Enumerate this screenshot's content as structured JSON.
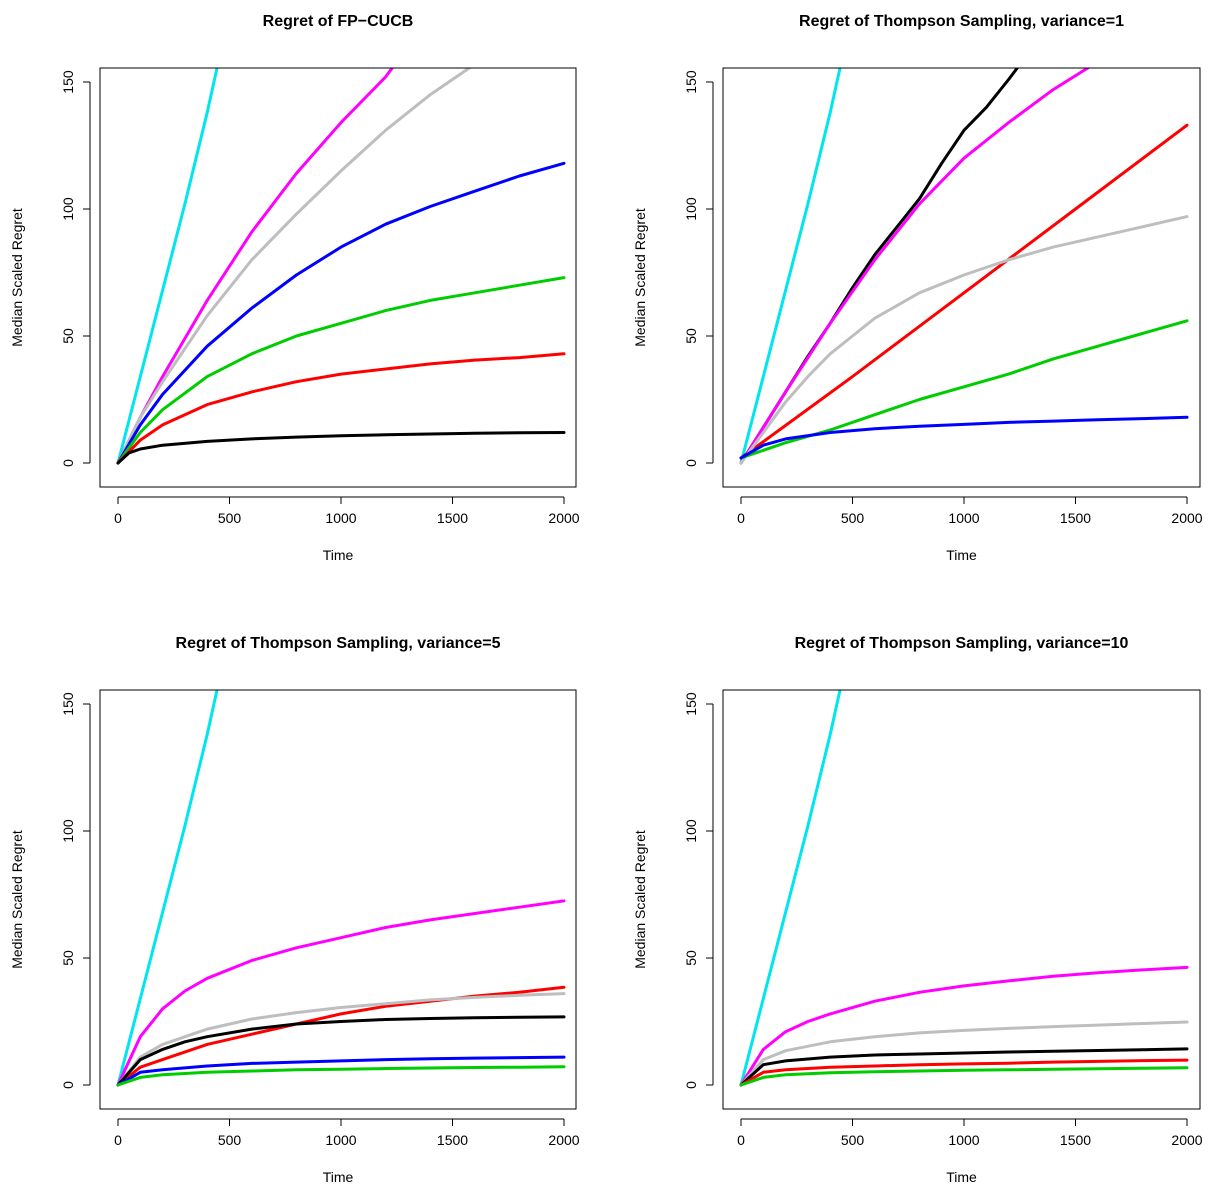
{
  "chart_data": [
    {
      "type": "line",
      "title": "Regret of FP−CUCB",
      "xlabel": "Time",
      "ylabel": "Median Scaled Regret",
      "xlim": [
        0,
        2000
      ],
      "ylim": [
        0,
        150
      ],
      "xticks": [
        "0",
        "500",
        "1000",
        "1500",
        "2000"
      ],
      "yticks": [
        "0",
        "50",
        "100",
        "150"
      ],
      "grid": false,
      "legend": "none",
      "series": [
        {
          "color": "#00e5ee",
          "x": [
            0,
            100,
            200,
            300,
            400,
            450
          ],
          "y": [
            0,
            34,
            68,
            102,
            138,
            158
          ]
        },
        {
          "color": "#ff00ff",
          "x": [
            0,
            100,
            200,
            400,
            600,
            800,
            1000,
            1200,
            1250
          ],
          "y": [
            0,
            18,
            34,
            64,
            91,
            114,
            134,
            152,
            158
          ]
        },
        {
          "color": "#bebebe",
          "x": [
            0,
            100,
            200,
            400,
            600,
            800,
            1000,
            1200,
            1400,
            1600
          ],
          "y": [
            0,
            18,
            32,
            58,
            80,
            98,
            115,
            131,
            145,
            157
          ]
        },
        {
          "color": "#0000ff",
          "x": [
            0,
            100,
            200,
            400,
            600,
            800,
            1000,
            1200,
            1400,
            1600,
            1800,
            2000
          ],
          "y": [
            0,
            15,
            27,
            46,
            61,
            74,
            85,
            94,
            101,
            107,
            113,
            118
          ]
        },
        {
          "color": "#00cd00",
          "x": [
            0,
            100,
            200,
            400,
            600,
            800,
            1000,
            1200,
            1400,
            1600,
            1800,
            2000
          ],
          "y": [
            0,
            12,
            21,
            34,
            43,
            50,
            55,
            60,
            64,
            67,
            70,
            73
          ]
        },
        {
          "color": "#ff0000",
          "x": [
            0,
            100,
            200,
            400,
            600,
            800,
            1000,
            1200,
            1400,
            1600,
            1800,
            2000
          ],
          "y": [
            0,
            9,
            15,
            23,
            28,
            32,
            35,
            37,
            39,
            40.5,
            41.5,
            43
          ]
        },
        {
          "color": "#000000",
          "x": [
            0,
            50,
            100,
            200,
            400,
            600,
            800,
            1000,
            1200,
            1400,
            1600,
            1800,
            2000
          ],
          "y": [
            0,
            4,
            5.5,
            7,
            8.5,
            9.5,
            10.2,
            10.7,
            11.1,
            11.4,
            11.7,
            11.9,
            12
          ]
        }
      ]
    },
    {
      "type": "line",
      "title": "Regret of Thompson Sampling, variance=1",
      "xlabel": "Time",
      "ylabel": "Median Scaled Regret",
      "xlim": [
        0,
        2000
      ],
      "ylim": [
        0,
        150
      ],
      "xticks": [
        "0",
        "500",
        "1000",
        "1500",
        "2000"
      ],
      "yticks": [
        "0",
        "50",
        "100",
        "150"
      ],
      "grid": false,
      "legend": "none",
      "series": [
        {
          "color": "#00e5ee",
          "x": [
            0,
            100,
            200,
            300,
            400,
            450
          ],
          "y": [
            0,
            34,
            68,
            102,
            138,
            158
          ]
        },
        {
          "color": "#000000",
          "x": [
            0,
            100,
            200,
            300,
            400,
            500,
            600,
            700,
            800,
            900,
            1000,
            1100,
            1200,
            1260
          ],
          "y": [
            0,
            14,
            28,
            42,
            55,
            69,
            82,
            93,
            104,
            118,
            131,
            140,
            151,
            158
          ]
        },
        {
          "color": "#ff00ff",
          "x": [
            0,
            100,
            200,
            400,
            600,
            800,
            1000,
            1200,
            1400,
            1600
          ],
          "y": [
            0,
            14,
            28,
            55,
            80,
            102,
            120,
            134,
            147,
            158
          ]
        },
        {
          "color": "#ff0000",
          "x": [
            0,
            500,
            1000,
            1500,
            2000
          ],
          "y": [
            2,
            34,
            67,
            100,
            133
          ]
        },
        {
          "color": "#bebebe",
          "x": [
            0,
            100,
            200,
            300,
            400,
            500,
            600,
            800,
            1000,
            1200,
            1400,
            1600,
            1800,
            2000
          ],
          "y": [
            0,
            12,
            24,
            34,
            43,
            50,
            57,
            67,
            74,
            80,
            85,
            89,
            93,
            97
          ]
        },
        {
          "color": "#00cd00",
          "x": [
            0,
            200,
            400,
            600,
            800,
            1000,
            1200,
            1400,
            1600,
            1800,
            2000
          ],
          "y": [
            2,
            8,
            13,
            19,
            25,
            30,
            35,
            41,
            46,
            51,
            56
          ]
        },
        {
          "color": "#0000ff",
          "x": [
            0,
            100,
            200,
            400,
            600,
            800,
            1000,
            1200,
            1400,
            1600,
            1800,
            2000
          ],
          "y": [
            2,
            7,
            9.5,
            12,
            13.5,
            14.5,
            15.2,
            16,
            16.5,
            17,
            17.5,
            18
          ]
        }
      ]
    },
    {
      "type": "line",
      "title": "Regret of Thompson Sampling, variance=5",
      "xlabel": "Time",
      "ylabel": "Median Scaled Regret",
      "xlim": [
        0,
        2000
      ],
      "ylim": [
        0,
        150
      ],
      "xticks": [
        "0",
        "500",
        "1000",
        "1500",
        "2000"
      ],
      "yticks": [
        "0",
        "50",
        "100",
        "150"
      ],
      "grid": false,
      "legend": "none",
      "series": [
        {
          "color": "#00e5ee",
          "x": [
            0,
            100,
            200,
            300,
            400,
            450
          ],
          "y": [
            0,
            34,
            68,
            102,
            138,
            158
          ]
        },
        {
          "color": "#ff00ff",
          "x": [
            0,
            100,
            200,
            300,
            400,
            600,
            800,
            1000,
            1200,
            1400,
            1600,
            1800,
            2000
          ],
          "y": [
            0,
            19,
            30,
            37,
            42,
            49,
            54,
            58,
            62,
            65,
            67.5,
            70,
            72.5
          ]
        },
        {
          "color": "#ff0000",
          "x": [
            0,
            100,
            200,
            400,
            600,
            800,
            1000,
            1200,
            1400,
            1600,
            1800,
            2000
          ],
          "y": [
            0,
            7,
            10,
            16,
            20,
            24,
            28,
            31,
            33,
            35,
            36.5,
            38.5
          ]
        },
        {
          "color": "#bebebe",
          "x": [
            0,
            100,
            200,
            400,
            600,
            800,
            1000,
            1200,
            1400,
            1600,
            1800,
            2000
          ],
          "y": [
            0,
            11,
            16,
            22,
            26,
            28.5,
            30.5,
            32,
            33.5,
            34.5,
            35.3,
            36
          ]
        },
        {
          "color": "#000000",
          "x": [
            0,
            100,
            200,
            300,
            400,
            600,
            800,
            1000,
            1200,
            1400,
            1600,
            1800,
            2000
          ],
          "y": [
            0,
            10,
            14,
            17,
            19,
            22,
            24,
            25,
            25.8,
            26.2,
            26.5,
            26.7,
            26.8
          ]
        },
        {
          "color": "#0000ff",
          "x": [
            0,
            100,
            200,
            400,
            600,
            800,
            1000,
            1200,
            1400,
            1600,
            1800,
            2000
          ],
          "y": [
            0,
            5,
            6,
            7.5,
            8.5,
            9,
            9.5,
            10,
            10.3,
            10.6,
            10.8,
            11
          ]
        },
        {
          "color": "#00cd00",
          "x": [
            0,
            100,
            200,
            400,
            600,
            800,
            1000,
            1200,
            1400,
            1600,
            1800,
            2000
          ],
          "y": [
            0,
            3,
            4,
            5,
            5.5,
            6,
            6.2,
            6.5,
            6.7,
            6.9,
            7,
            7.2
          ]
        }
      ]
    },
    {
      "type": "line",
      "title": "Regret of Thompson Sampling, variance=10",
      "xlabel": "Time",
      "ylabel": "Median Scaled Regret",
      "xlim": [
        0,
        2000
      ],
      "ylim": [
        0,
        150
      ],
      "xticks": [
        "0",
        "500",
        "1000",
        "1500",
        "2000"
      ],
      "yticks": [
        "0",
        "50",
        "100",
        "150"
      ],
      "grid": false,
      "legend": "none",
      "series": [
        {
          "color": "#00e5ee",
          "x": [
            0,
            100,
            200,
            300,
            400,
            450
          ],
          "y": [
            0,
            34,
            68,
            102,
            138,
            158
          ]
        },
        {
          "color": "#ff00ff",
          "x": [
            0,
            100,
            200,
            300,
            400,
            600,
            800,
            1000,
            1200,
            1400,
            1600,
            1800,
            2000
          ],
          "y": [
            0,
            14,
            21,
            25,
            28,
            33,
            36.5,
            39,
            41,
            42.8,
            44.2,
            45.3,
            46.3
          ]
        },
        {
          "color": "#bebebe",
          "x": [
            0,
            100,
            200,
            400,
            600,
            800,
            1000,
            1200,
            1400,
            1600,
            1800,
            2000
          ],
          "y": [
            0,
            10,
            13.5,
            17,
            19,
            20.5,
            21.5,
            22.3,
            23,
            23.6,
            24.2,
            24.8
          ]
        },
        {
          "color": "#000000",
          "x": [
            0,
            100,
            200,
            400,
            600,
            800,
            1000,
            1200,
            1400,
            1600,
            1800,
            2000
          ],
          "y": [
            0,
            8,
            9.5,
            11,
            11.8,
            12.2,
            12.6,
            13,
            13.3,
            13.6,
            13.9,
            14.2
          ]
        },
        {
          "color": "#ff0000",
          "x": [
            0,
            100,
            200,
            400,
            600,
            800,
            1000,
            1200,
            1400,
            1600,
            1800,
            2000
          ],
          "y": [
            0,
            5,
            6,
            7,
            7.5,
            8,
            8.3,
            8.6,
            9,
            9.3,
            9.6,
            9.8
          ]
        },
        {
          "color": "#00cd00",
          "x": [
            0,
            100,
            200,
            400,
            600,
            800,
            1000,
            1200,
            1400,
            1600,
            1800,
            2000
          ],
          "y": [
            0,
            3,
            4,
            4.8,
            5.2,
            5.5,
            5.8,
            6,
            6.2,
            6.4,
            6.6,
            6.8
          ]
        }
      ]
    }
  ]
}
